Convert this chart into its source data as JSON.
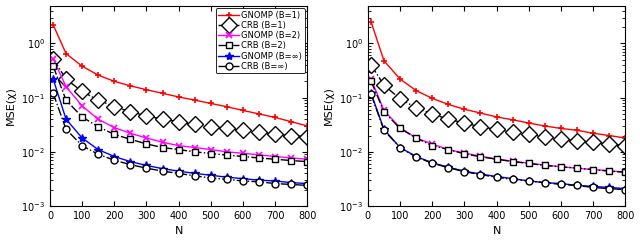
{
  "N": [
    10,
    50,
    100,
    150,
    200,
    250,
    300,
    350,
    400,
    450,
    500,
    550,
    600,
    650,
    700,
    750,
    800
  ],
  "subplot1": {
    "gnomp_B1": [
      2.2,
      0.65,
      0.38,
      0.26,
      0.2,
      0.165,
      0.14,
      0.12,
      0.103,
      0.09,
      0.078,
      0.068,
      0.058,
      0.05,
      0.043,
      0.036,
      0.03
    ],
    "crb_B1": [
      0.52,
      0.22,
      0.13,
      0.09,
      0.068,
      0.055,
      0.046,
      0.04,
      0.036,
      0.032,
      0.029,
      0.027,
      0.025,
      0.023,
      0.021,
      0.02,
      0.019
    ],
    "gnomp_B2": [
      0.52,
      0.16,
      0.07,
      0.04,
      0.028,
      0.022,
      0.018,
      0.015,
      0.013,
      0.012,
      0.011,
      0.01,
      0.0094,
      0.0088,
      0.0082,
      0.0077,
      0.0073
    ],
    "crb_B2": [
      0.38,
      0.09,
      0.044,
      0.029,
      0.021,
      0.017,
      0.014,
      0.012,
      0.011,
      0.01,
      0.0093,
      0.0087,
      0.0082,
      0.0077,
      0.0073,
      0.0069,
      0.0066
    ],
    "gnomp_Binf": [
      0.22,
      0.04,
      0.018,
      0.011,
      0.0082,
      0.0066,
      0.0056,
      0.0049,
      0.0044,
      0.004,
      0.0037,
      0.0034,
      0.0032,
      0.003,
      0.0029,
      0.0027,
      0.0026
    ],
    "crb_Binf": [
      0.12,
      0.026,
      0.013,
      0.009,
      0.007,
      0.0058,
      0.005,
      0.0044,
      0.004,
      0.0036,
      0.0033,
      0.0031,
      0.0029,
      0.0028,
      0.0026,
      0.0025,
      0.0024
    ]
  },
  "subplot2": {
    "gnomp_B1": [
      2.5,
      0.48,
      0.22,
      0.135,
      0.097,
      0.075,
      0.061,
      0.052,
      0.044,
      0.039,
      0.034,
      0.03,
      0.027,
      0.025,
      0.022,
      0.02,
      0.018
    ],
    "crb_B1": [
      0.4,
      0.17,
      0.095,
      0.065,
      0.05,
      0.04,
      0.034,
      0.029,
      0.026,
      0.023,
      0.021,
      0.019,
      0.017,
      0.016,
      0.015,
      0.014,
      0.013
    ],
    "gnomp_B2": [
      0.22,
      0.058,
      0.028,
      0.018,
      0.014,
      0.011,
      0.0095,
      0.0083,
      0.0074,
      0.0067,
      0.0062,
      0.0057,
      0.0053,
      0.005,
      0.0047,
      0.0045,
      0.0042
    ],
    "crb_B2": [
      0.2,
      0.055,
      0.027,
      0.018,
      0.013,
      0.011,
      0.0092,
      0.0081,
      0.0073,
      0.0066,
      0.0061,
      0.0056,
      0.0053,
      0.005,
      0.0047,
      0.0044,
      0.0042
    ],
    "gnomp_Binf": [
      0.12,
      0.026,
      0.012,
      0.0082,
      0.0063,
      0.0052,
      0.0044,
      0.0039,
      0.0035,
      0.0032,
      0.0029,
      0.0027,
      0.0026,
      0.0024,
      0.0023,
      0.0022,
      0.0021
    ],
    "crb_Binf": [
      0.115,
      0.025,
      0.012,
      0.008,
      0.0062,
      0.0051,
      0.0043,
      0.0038,
      0.0034,
      0.0031,
      0.0029,
      0.0027,
      0.0025,
      0.0024,
      0.0022,
      0.0021,
      0.002
    ]
  },
  "colors": {
    "gnomp_B1": "#ff0000",
    "crb_B1": "#000000",
    "gnomp_B2": "#ff00ff",
    "crb_B2": "#000000",
    "gnomp_Binf": "#0000ff",
    "crb_Binf": "#000000"
  },
  "legend_labels": [
    "GNOMP (B=1)",
    "CRB (B=1)",
    "GNOMP (B=2)",
    "CRB (B=2)",
    "GNOMP (B=∞)",
    "CRB (B=∞)"
  ],
  "xlabel": "N",
  "ylabel": "MSE(χ)",
  "ylim": [
    0.001,
    5.0
  ],
  "xlim": [
    0,
    800
  ]
}
